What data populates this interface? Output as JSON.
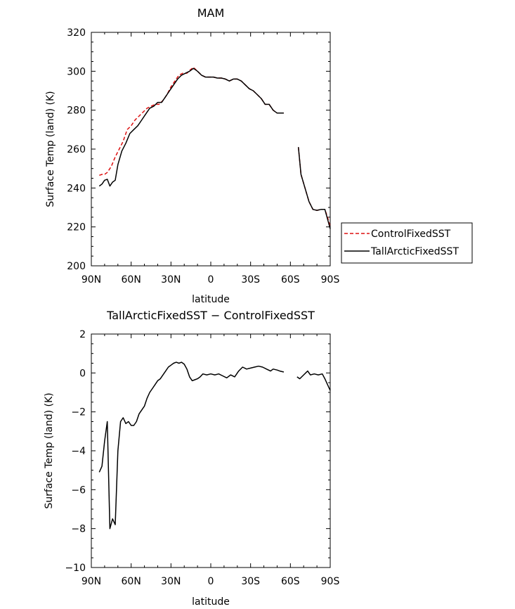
{
  "chart_data": [
    {
      "type": "line",
      "title": "MAM",
      "xlabel": "latitude",
      "ylabel": "Surface Temp (land) (K)",
      "xlim": [
        90,
        -90
      ],
      "ylim": [
        200,
        320
      ],
      "xticks": [
        90,
        60,
        30,
        0,
        -30,
        -60,
        -90
      ],
      "xtick_labels": [
        "90N",
        "60N",
        "30N",
        "0",
        "30S",
        "60S",
        "90S"
      ],
      "yticks": [
        200,
        220,
        240,
        260,
        280,
        300,
        320
      ],
      "ytick_labels": [
        "200",
        "220",
        "240",
        "260",
        "280",
        "300",
        "320"
      ],
      "legend_position": "right-outside",
      "series": [
        {
          "name": "ControlFixedSST",
          "color": "#dd1111",
          "dash": "dashed",
          "segments": [
            [
              [
                84,
                246.5
              ],
              [
                82,
                247
              ],
              [
                80,
                247
              ],
              [
                78,
                248
              ],
              [
                75,
                251
              ],
              [
                72,
                256
              ],
              [
                69,
                260
              ],
              [
                66,
                264
              ],
              [
                63,
                270
              ],
              [
                60,
                272
              ],
              [
                57,
                275
              ],
              [
                54,
                277
              ],
              [
                51,
                279
              ],
              [
                48,
                281
              ],
              [
                45,
                282
              ],
              [
                42,
                283
              ],
              [
                39,
                283
              ],
              [
                36,
                285
              ],
              [
                33,
                288
              ],
              [
                30,
                292
              ],
              [
                27,
                295
              ],
              [
                24,
                298
              ],
              [
                21,
                299
              ],
              [
                18,
                299
              ],
              [
                15,
                301
              ],
              [
                13,
                302
              ],
              [
                10,
                300
              ],
              [
                7,
                298
              ],
              [
                4,
                297
              ],
              [
                1,
                297
              ],
              [
                -2,
                297
              ],
              [
                -5,
                296.5
              ],
              [
                -8,
                296.5
              ],
              [
                -11,
                296
              ],
              [
                -14,
                295
              ],
              [
                -17,
                296
              ],
              [
                -20,
                296
              ],
              [
                -23,
                295
              ],
              [
                -26,
                293
              ],
              [
                -29,
                291
              ],
              [
                -32,
                290
              ],
              [
                -35,
                288
              ],
              [
                -38,
                286
              ],
              [
                -41,
                283
              ],
              [
                -44,
                283
              ],
              [
                -47,
                280
              ],
              [
                -50,
                278.5
              ],
              [
                -53,
                278.5
              ],
              [
                -55,
                278.5
              ]
            ],
            [
              [
                -66,
                261
              ],
              [
                -68,
                247
              ],
              [
                -71,
                240
              ],
              [
                -74,
                233
              ],
              [
                -77,
                229
              ],
              [
                -80,
                228.5
              ],
              [
                -83,
                229
              ],
              [
                -86,
                229
              ],
              [
                -88,
                225
              ],
              [
                -90,
                220
              ]
            ]
          ]
        },
        {
          "name": "TallArcticFixedSST",
          "color": "#000000",
          "dash": "solid",
          "segments": [
            [
              [
                84,
                241
              ],
              [
                82,
                242
              ],
              [
                80,
                244
              ],
              [
                78,
                244.5
              ],
              [
                76,
                241
              ],
              [
                74,
                243
              ],
              [
                72,
                244
              ],
              [
                70,
                252
              ],
              [
                67,
                259
              ],
              [
                64,
                263
              ],
              [
                61,
                268
              ],
              [
                58,
                270
              ],
              [
                55,
                272
              ],
              [
                52,
                275
              ],
              [
                49,
                278
              ],
              [
                46,
                281
              ],
              [
                43,
                282
              ],
              [
                40,
                284
              ],
              [
                37,
                284
              ],
              [
                34,
                287
              ],
              [
                31,
                290
              ],
              [
                28,
                293
              ],
              [
                25,
                296
              ],
              [
                22,
                298
              ],
              [
                19,
                299
              ],
              [
                16,
                300
              ],
              [
                13,
                301.5
              ],
              [
                10,
                300
              ],
              [
                7,
                298
              ],
              [
                4,
                297
              ],
              [
                1,
                297
              ],
              [
                -2,
                297
              ],
              [
                -5,
                296.5
              ],
              [
                -8,
                296.5
              ],
              [
                -11,
                296
              ],
              [
                -14,
                295
              ],
              [
                -17,
                296
              ],
              [
                -20,
                296
              ],
              [
                -23,
                295
              ],
              [
                -26,
                293
              ],
              [
                -29,
                291
              ],
              [
                -32,
                290
              ],
              [
                -35,
                288
              ],
              [
                -38,
                286
              ],
              [
                -41,
                283
              ],
              [
                -44,
                283
              ],
              [
                -47,
                280
              ],
              [
                -50,
                278.5
              ],
              [
                -53,
                278.5
              ],
              [
                -55,
                278.5
              ]
            ],
            [
              [
                -66,
                261
              ],
              [
                -68,
                247
              ],
              [
                -71,
                240
              ],
              [
                -74,
                233
              ],
              [
                -77,
                229
              ],
              [
                -80,
                228.5
              ],
              [
                -83,
                229
              ],
              [
                -86,
                229
              ],
              [
                -88,
                224
              ],
              [
                -90,
                219
              ]
            ]
          ]
        }
      ]
    },
    {
      "type": "line",
      "title": "TallArcticFixedSST − ControlFixedSST",
      "xlabel": "latitude",
      "ylabel": "Surface Temp (land) (K)",
      "xlim": [
        90,
        -90
      ],
      "ylim": [
        -10,
        2
      ],
      "xticks": [
        90,
        60,
        30,
        0,
        -30,
        -60,
        -90
      ],
      "xtick_labels": [
        "90N",
        "60N",
        "30N",
        "0",
        "30S",
        "60S",
        "90S"
      ],
      "yticks": [
        -10,
        -8,
        -6,
        -4,
        -2,
        0,
        2
      ],
      "ytick_labels": [
        "−10",
        "−8",
        "−6",
        "−4",
        "−2",
        "0",
        "2"
      ],
      "series": [
        {
          "color": "#000000",
          "dash": "solid",
          "segments": [
            [
              [
                84,
                -5.1
              ],
              [
                82,
                -4.8
              ],
              [
                80,
                -3.5
              ],
              [
                78,
                -2.5
              ],
              [
                76,
                -8
              ],
              [
                74,
                -7.5
              ],
              [
                72,
                -7.8
              ],
              [
                70,
                -4
              ],
              [
                68,
                -2.5
              ],
              [
                66,
                -2.3
              ],
              [
                64,
                -2.6
              ],
              [
                62,
                -2.5
              ],
              [
                60,
                -2.7
              ],
              [
                58,
                -2.7
              ],
              [
                56,
                -2.5
              ],
              [
                54,
                -2.1
              ],
              [
                52,
                -1.9
              ],
              [
                50,
                -1.7
              ],
              [
                48,
                -1.3
              ],
              [
                46,
                -1.0
              ],
              [
                44,
                -0.8
              ],
              [
                42,
                -0.6
              ],
              [
                40,
                -0.4
              ],
              [
                38,
                -0.3
              ],
              [
                36,
                -0.1
              ],
              [
                34,
                0.1
              ],
              [
                32,
                0.3
              ],
              [
                30,
                0.4
              ],
              [
                28,
                0.5
              ],
              [
                26,
                0.55
              ],
              [
                24,
                0.5
              ],
              [
                22,
                0.55
              ],
              [
                20,
                0.45
              ],
              [
                18,
                0.2
              ],
              [
                16,
                -0.2
              ],
              [
                14,
                -0.4
              ],
              [
                12,
                -0.35
              ],
              [
                10,
                -0.3
              ],
              [
                8,
                -0.2
              ],
              [
                6,
                -0.05
              ],
              [
                3,
                -0.1
              ],
              [
                0,
                -0.05
              ],
              [
                -3,
                -0.1
              ],
              [
                -6,
                -0.05
              ],
              [
                -9,
                -0.15
              ],
              [
                -12,
                -0.25
              ],
              [
                -15,
                -0.1
              ],
              [
                -18,
                -0.2
              ],
              [
                -21,
                0.1
              ],
              [
                -24,
                0.3
              ],
              [
                -27,
                0.2
              ],
              [
                -30,
                0.25
              ],
              [
                -33,
                0.3
              ],
              [
                -36,
                0.35
              ],
              [
                -39,
                0.3
              ],
              [
                -42,
                0.2
              ],
              [
                -45,
                0.1
              ],
              [
                -47,
                0.2
              ],
              [
                -50,
                0.15
              ],
              [
                -52,
                0.1
              ],
              [
                -55,
                0.05
              ]
            ],
            [
              [
                -65,
                -0.2
              ],
              [
                -67,
                -0.3
              ],
              [
                -70,
                -0.1
              ],
              [
                -73,
                0.1
              ],
              [
                -75,
                -0.1
              ],
              [
                -78,
                -0.05
              ],
              [
                -81,
                -0.1
              ],
              [
                -84,
                -0.05
              ],
              [
                -86,
                -0.3
              ],
              [
                -88,
                -0.6
              ],
              [
                -90,
                -0.9
              ]
            ]
          ]
        }
      ]
    }
  ]
}
